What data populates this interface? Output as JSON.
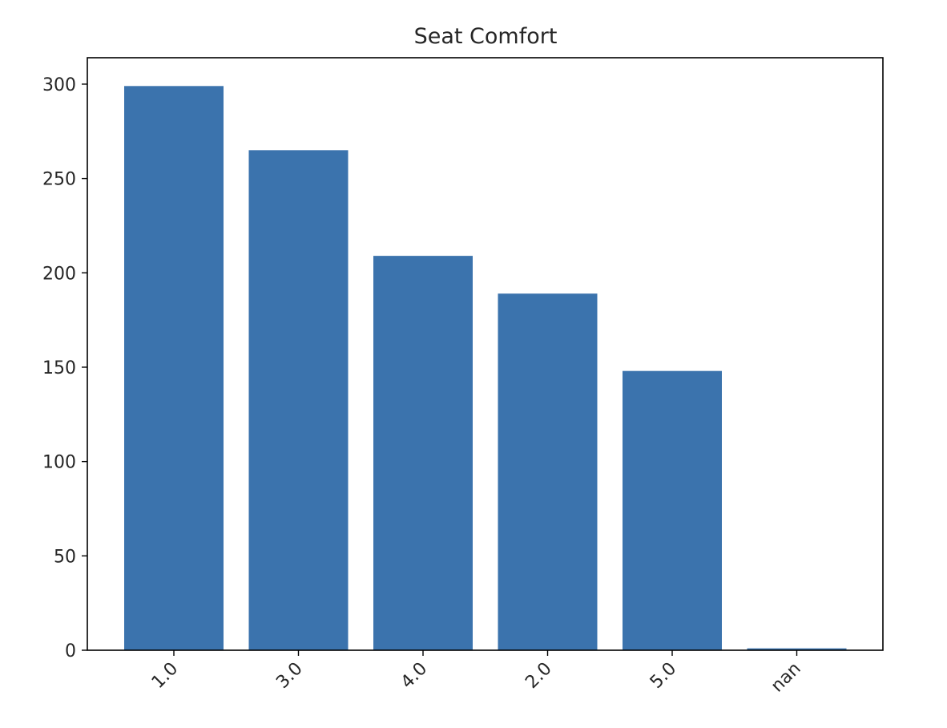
{
  "chart_data": {
    "type": "bar",
    "title": "Seat Comfort",
    "xlabel": "",
    "ylabel": "",
    "categories": [
      "1.0",
      "3.0",
      "4.0",
      "2.0",
      "5.0",
      "nan"
    ],
    "values": [
      299,
      265,
      209,
      189,
      148,
      1
    ],
    "ylim": [
      0,
      314
    ],
    "yticks": [
      0,
      50,
      100,
      150,
      200,
      250,
      300
    ],
    "grid": false,
    "bar_color": "#3b73ad",
    "axis_color": "#000000"
  }
}
